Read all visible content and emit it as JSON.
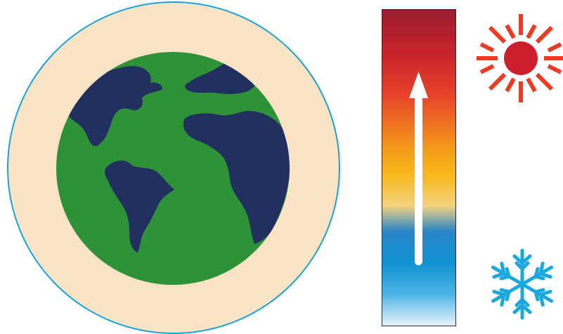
{
  "colors": {
    "atmosphere_fill": "#fbe3c6",
    "atmosphere_stroke": "#1aa3d6",
    "land": "#2e9338",
    "ocean_shapes": "#22305f",
    "bar_border": "#2b2b2b",
    "arrow": "#ffffff",
    "sun": "#cf1f2e",
    "sun_rays": "#ec3a24",
    "snowflake": "#1ba9dd",
    "gradient_stops": [
      "#9b1b30",
      "#c8232c",
      "#e8432a",
      "#f39a1a",
      "#f8b719",
      "#f3d27e",
      "#2b86c8",
      "#0f92d1",
      "#4db3e6",
      "#e9f4fb"
    ]
  },
  "icons": {
    "globe": "earth-globe-icon",
    "hot": "sun-icon",
    "cold": "snowflake-icon",
    "direction": "up-arrow-icon"
  }
}
